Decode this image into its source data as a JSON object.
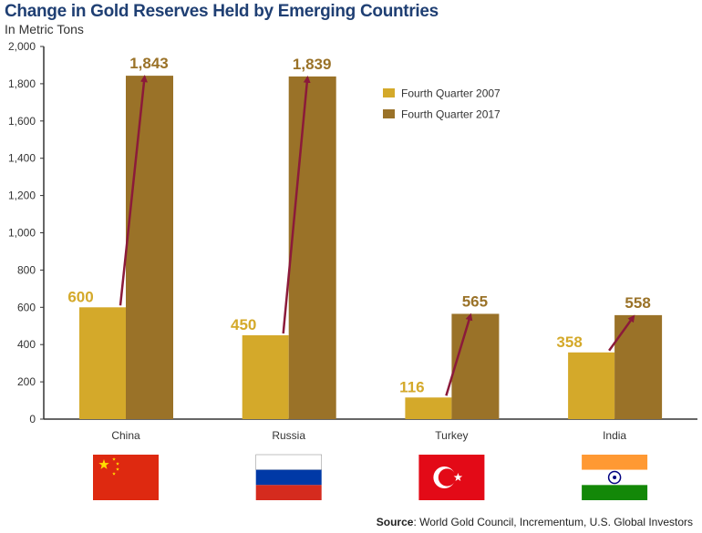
{
  "chart_data": {
    "type": "bar",
    "title": "Change in Gold Reserves Held by Emerging Countries",
    "subtitle": "In Metric Tons",
    "categories": [
      "China",
      "Russia",
      "Turkey",
      "India"
    ],
    "series": [
      {
        "name": "Fourth Quarter 2007",
        "values": [
          600,
          450,
          116,
          358
        ],
        "color": "#d4a92a"
      },
      {
        "name": "Fourth Quarter 2017",
        "values": [
          1843,
          1839,
          565,
          558
        ],
        "color": "#9a7228"
      }
    ],
    "data_labels": [
      [
        "600",
        "450",
        "116",
        "358"
      ],
      [
        "1,843",
        "1,839",
        "565",
        "558"
      ]
    ],
    "ylim": [
      0,
      2000
    ],
    "yticks": [
      0,
      200,
      400,
      600,
      800,
      1000,
      1200,
      1400,
      1600,
      1800,
      2000
    ],
    "ytick_labels": [
      "0",
      "200",
      "400",
      "600",
      "800",
      "1,000",
      "1,200",
      "1,400",
      "1,600",
      "1,800",
      "2,000"
    ],
    "xlabel": "",
    "ylabel": "",
    "grid": false,
    "legend_position": "top-right",
    "arrow_color": "#8b1a3a",
    "flags": [
      "china-flag",
      "russia-flag",
      "turkey-flag",
      "india-flag"
    ]
  },
  "source": {
    "label": "Source",
    "text": ": World Gold Council, Incrementum, U.S. Global Investors"
  }
}
